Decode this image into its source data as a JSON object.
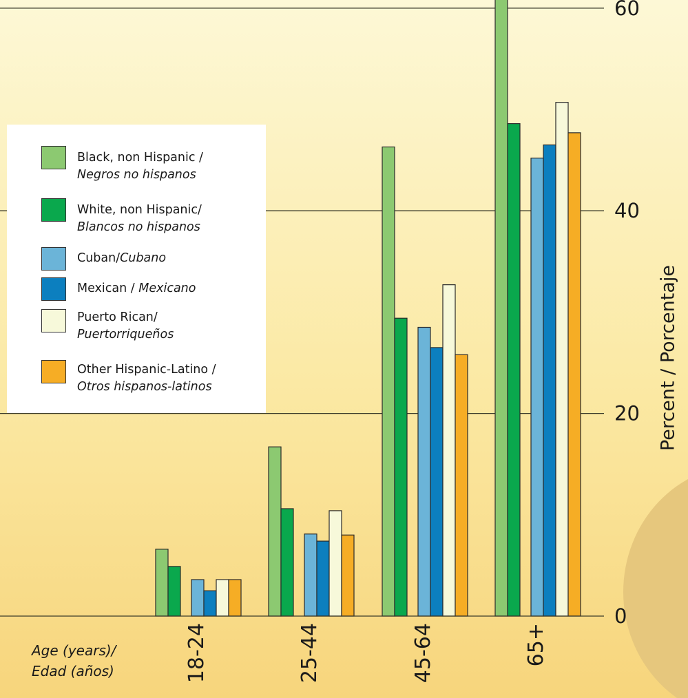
{
  "chart_data": {
    "type": "bar",
    "title": "",
    "categories": [
      "18-24",
      "25-44",
      "45-64",
      "65+"
    ],
    "series": [
      {
        "name": "Black, non Hispanic / Negros no hispanos",
        "label_en": "Black, non Hispanic /",
        "label_es": "Negros no hispanos",
        "color": "#8cc971",
        "values": [
          6.6,
          16.7,
          46.3,
          64.0
        ]
      },
      {
        "name": "White, non Hispanic/ Blancos no hispanos",
        "label_en": "White, non Hispanic/",
        "label_es": "Blancos no hispanos",
        "color": "#0aa84d",
        "values": [
          4.9,
          10.6,
          29.4,
          48.6
        ]
      },
      {
        "name": "Cuban/Cubano",
        "label_en": "Cuban/",
        "label_es": "Cubano",
        "color": "#6bb4d8",
        "values": [
          3.6,
          8.1,
          28.5,
          45.2
        ]
      },
      {
        "name": "Mexican / Mexicano",
        "label_en": "Mexican / ",
        "label_es": "Mexicano",
        "color": "#0c7fbf",
        "values": [
          2.5,
          7.4,
          26.5,
          46.5
        ]
      },
      {
        "name": "Puerto Rican/ Puertorriqueños",
        "label_en": "Puerto Rican/",
        "label_es": "Puertorriqueños",
        "color": "#f7f9da",
        "values": [
          3.6,
          10.4,
          32.7,
          50.7
        ]
      },
      {
        "name": "Other Hispanic-Latino / Otros hispanos-latinos",
        "label_en": "Other Hispanic-Latino /",
        "label_es": "Otros hispanos-latinos",
        "color": "#f6ad25",
        "values": [
          3.6,
          8.0,
          25.8,
          47.7
        ]
      }
    ],
    "xlabel_en": "Age (years)/",
    "xlabel_es": "Edad (años)",
    "ylabel": "Percent / Porcentaje",
    "yticks": [
      0,
      20,
      40,
      60
    ],
    "ylim": [
      0,
      60
    ],
    "grid": true,
    "legend_position": "top-left"
  }
}
